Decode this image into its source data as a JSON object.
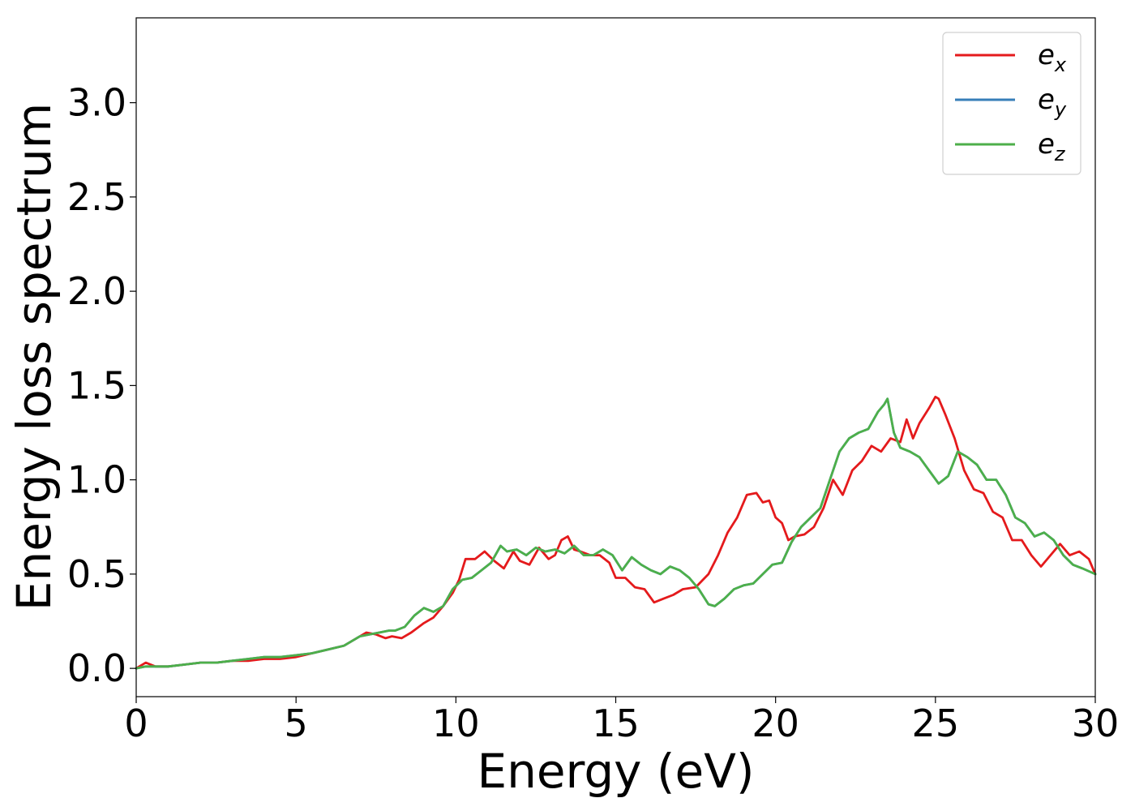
{
  "chart_data": {
    "type": "line",
    "xlabel": "Energy (eV)",
    "ylabel": "Energy loss spectrum",
    "xlim": [
      0,
      30
    ],
    "ylim": [
      -0.15,
      3.45
    ],
    "xticks": [
      0,
      5,
      10,
      15,
      20,
      25,
      30
    ],
    "yticks": [
      0.0,
      0.5,
      1.0,
      1.5,
      2.0,
      2.5,
      3.0
    ],
    "xtick_labels": [
      "0",
      "5",
      "10",
      "15",
      "20",
      "25",
      "30"
    ],
    "ytick_labels": [
      "0.0",
      "0.5",
      "1.0",
      "1.5",
      "2.0",
      "2.5",
      "3.0"
    ],
    "grid": false,
    "legend": {
      "position": "top-right"
    },
    "series": [
      {
        "name": "e_x",
        "legend_base": "e",
        "legend_sub": "x",
        "color": "#e41a1c",
        "x": [
          0,
          0.3,
          0.6,
          1,
          1.5,
          2,
          2.5,
          3,
          3.5,
          4,
          4.5,
          5,
          5.5,
          6,
          6.5,
          7,
          7.2,
          7.5,
          7.8,
          8,
          8.3,
          8.6,
          9,
          9.3,
          9.6,
          9.9,
          10.1,
          10.3,
          10.6,
          10.9,
          11.2,
          11.5,
          11.8,
          12,
          12.3,
          12.6,
          12.9,
          13.1,
          13.3,
          13.5,
          13.7,
          13.9,
          14.2,
          14.5,
          14.8,
          15,
          15.3,
          15.6,
          15.9,
          16.2,
          16.5,
          16.8,
          17.1,
          17.5,
          17.9,
          18.2,
          18.5,
          18.8,
          19.1,
          19.4,
          19.6,
          19.8,
          20,
          20.2,
          20.4,
          20.6,
          20.9,
          21.2,
          21.5,
          21.8,
          22.1,
          22.4,
          22.7,
          23,
          23.3,
          23.6,
          23.9,
          24.1,
          24.3,
          24.5,
          24.8,
          25,
          25.1,
          25.3,
          25.6,
          25.9,
          26.2,
          26.5,
          26.8,
          27.1,
          27.4,
          27.7,
          28,
          28.3,
          28.6,
          28.9,
          29.2,
          29.5,
          29.8,
          30
        ],
        "y": [
          0.0,
          0.03,
          0.01,
          0.01,
          0.02,
          0.03,
          0.03,
          0.04,
          0.04,
          0.05,
          0.05,
          0.06,
          0.08,
          0.1,
          0.12,
          0.17,
          0.19,
          0.18,
          0.16,
          0.17,
          0.16,
          0.19,
          0.24,
          0.27,
          0.33,
          0.4,
          0.47,
          0.58,
          0.58,
          0.62,
          0.57,
          0.53,
          0.62,
          0.57,
          0.55,
          0.64,
          0.58,
          0.6,
          0.68,
          0.7,
          0.63,
          0.62,
          0.6,
          0.6,
          0.56,
          0.48,
          0.48,
          0.43,
          0.42,
          0.35,
          0.37,
          0.39,
          0.42,
          0.43,
          0.5,
          0.6,
          0.72,
          0.8,
          0.92,
          0.93,
          0.88,
          0.89,
          0.8,
          0.77,
          0.68,
          0.7,
          0.71,
          0.75,
          0.85,
          1.0,
          0.92,
          1.05,
          1.1,
          1.18,
          1.15,
          1.22,
          1.2,
          1.32,
          1.22,
          1.3,
          1.38,
          1.44,
          1.43,
          1.35,
          1.22,
          1.05,
          0.95,
          0.93,
          0.83,
          0.8,
          0.68,
          0.68,
          0.6,
          0.54,
          0.6,
          0.66,
          0.6,
          0.62,
          0.58,
          0.5
        ]
      },
      {
        "name": "e_y",
        "legend_base": "e",
        "legend_sub": "y",
        "color": "#377eb8",
        "x": [
          0,
          0.3,
          0.6,
          1,
          1.5,
          2,
          2.5,
          3,
          3.5,
          4,
          4.5,
          5,
          5.5,
          6,
          6.5,
          7,
          7.3,
          7.6,
          7.9,
          8.1,
          8.4,
          8.7,
          9,
          9.3,
          9.6,
          9.9,
          10.2,
          10.5,
          10.8,
          11.1,
          11.4,
          11.6,
          11.9,
          12.2,
          12.5,
          12.8,
          13.1,
          13.4,
          13.7,
          14,
          14.3,
          14.6,
          14.9,
          15.2,
          15.5,
          15.8,
          16.1,
          16.4,
          16.7,
          17,
          17.3,
          17.6,
          17.9,
          18.1,
          18.4,
          18.7,
          19,
          19.3,
          19.6,
          19.9,
          20.2,
          20.5,
          20.8,
          21.1,
          21.4,
          21.7,
          22,
          22.3,
          22.6,
          22.9,
          23.2,
          23.4,
          23.5,
          23.7,
          23.9,
          24.2,
          24.5,
          24.8,
          25.1,
          25.4,
          25.7,
          26,
          26.3,
          26.6,
          26.9,
          27.2,
          27.5,
          27.8,
          28.1,
          28.4,
          28.7,
          29,
          29.3,
          29.6,
          30
        ],
        "y": [
          0.0,
          0.01,
          0.01,
          0.01,
          0.02,
          0.03,
          0.03,
          0.04,
          0.05,
          0.06,
          0.06,
          0.07,
          0.08,
          0.1,
          0.12,
          0.17,
          0.18,
          0.19,
          0.2,
          0.2,
          0.22,
          0.28,
          0.32,
          0.3,
          0.33,
          0.42,
          0.47,
          0.48,
          0.52,
          0.56,
          0.65,
          0.62,
          0.63,
          0.6,
          0.64,
          0.62,
          0.63,
          0.61,
          0.65,
          0.6,
          0.6,
          0.63,
          0.6,
          0.52,
          0.59,
          0.55,
          0.52,
          0.5,
          0.54,
          0.52,
          0.48,
          0.42,
          0.34,
          0.33,
          0.37,
          0.42,
          0.44,
          0.45,
          0.5,
          0.55,
          0.56,
          0.67,
          0.75,
          0.8,
          0.85,
          1.0,
          1.15,
          1.22,
          1.25,
          1.27,
          1.36,
          1.4,
          1.43,
          1.25,
          1.17,
          1.15,
          1.12,
          1.05,
          0.98,
          1.02,
          1.15,
          1.12,
          1.08,
          1.0,
          1.0,
          0.92,
          0.8,
          0.77,
          0.7,
          0.72,
          0.68,
          0.6,
          0.55,
          0.53,
          0.5
        ]
      },
      {
        "name": "e_z",
        "legend_base": "e",
        "legend_sub": "z",
        "color": "#4daf4a",
        "x": [
          0,
          0.3,
          0.6,
          1,
          1.5,
          2,
          2.5,
          3,
          3.5,
          4,
          4.5,
          5,
          5.5,
          6,
          6.5,
          7,
          7.3,
          7.6,
          7.9,
          8.1,
          8.4,
          8.7,
          9,
          9.3,
          9.6,
          9.9,
          10.2,
          10.5,
          10.8,
          11.1,
          11.4,
          11.6,
          11.9,
          12.2,
          12.5,
          12.8,
          13.1,
          13.4,
          13.7,
          14,
          14.3,
          14.6,
          14.9,
          15.2,
          15.5,
          15.8,
          16.1,
          16.4,
          16.7,
          17,
          17.3,
          17.6,
          17.9,
          18.1,
          18.4,
          18.7,
          19,
          19.3,
          19.6,
          19.9,
          20.2,
          20.5,
          20.8,
          21.1,
          21.4,
          21.7,
          22,
          22.3,
          22.6,
          22.9,
          23.2,
          23.4,
          23.5,
          23.7,
          23.9,
          24.2,
          24.5,
          24.8,
          25.1,
          25.4,
          25.7,
          26,
          26.3,
          26.6,
          26.9,
          27.2,
          27.5,
          27.8,
          28.1,
          28.4,
          28.7,
          29,
          29.3,
          29.6,
          30
        ],
        "y": [
          0.0,
          0.01,
          0.01,
          0.01,
          0.02,
          0.03,
          0.03,
          0.04,
          0.05,
          0.06,
          0.06,
          0.07,
          0.08,
          0.1,
          0.12,
          0.17,
          0.18,
          0.19,
          0.2,
          0.2,
          0.22,
          0.28,
          0.32,
          0.3,
          0.33,
          0.42,
          0.47,
          0.48,
          0.52,
          0.56,
          0.65,
          0.62,
          0.63,
          0.6,
          0.64,
          0.62,
          0.63,
          0.61,
          0.65,
          0.6,
          0.6,
          0.63,
          0.6,
          0.52,
          0.59,
          0.55,
          0.52,
          0.5,
          0.54,
          0.52,
          0.48,
          0.42,
          0.34,
          0.33,
          0.37,
          0.42,
          0.44,
          0.45,
          0.5,
          0.55,
          0.56,
          0.67,
          0.75,
          0.8,
          0.85,
          1.0,
          1.15,
          1.22,
          1.25,
          1.27,
          1.36,
          1.4,
          1.43,
          1.25,
          1.17,
          1.15,
          1.12,
          1.05,
          0.98,
          1.02,
          1.15,
          1.12,
          1.08,
          1.0,
          1.0,
          0.92,
          0.8,
          0.77,
          0.7,
          0.72,
          0.68,
          0.6,
          0.55,
          0.53,
          0.5
        ]
      }
    ]
  }
}
